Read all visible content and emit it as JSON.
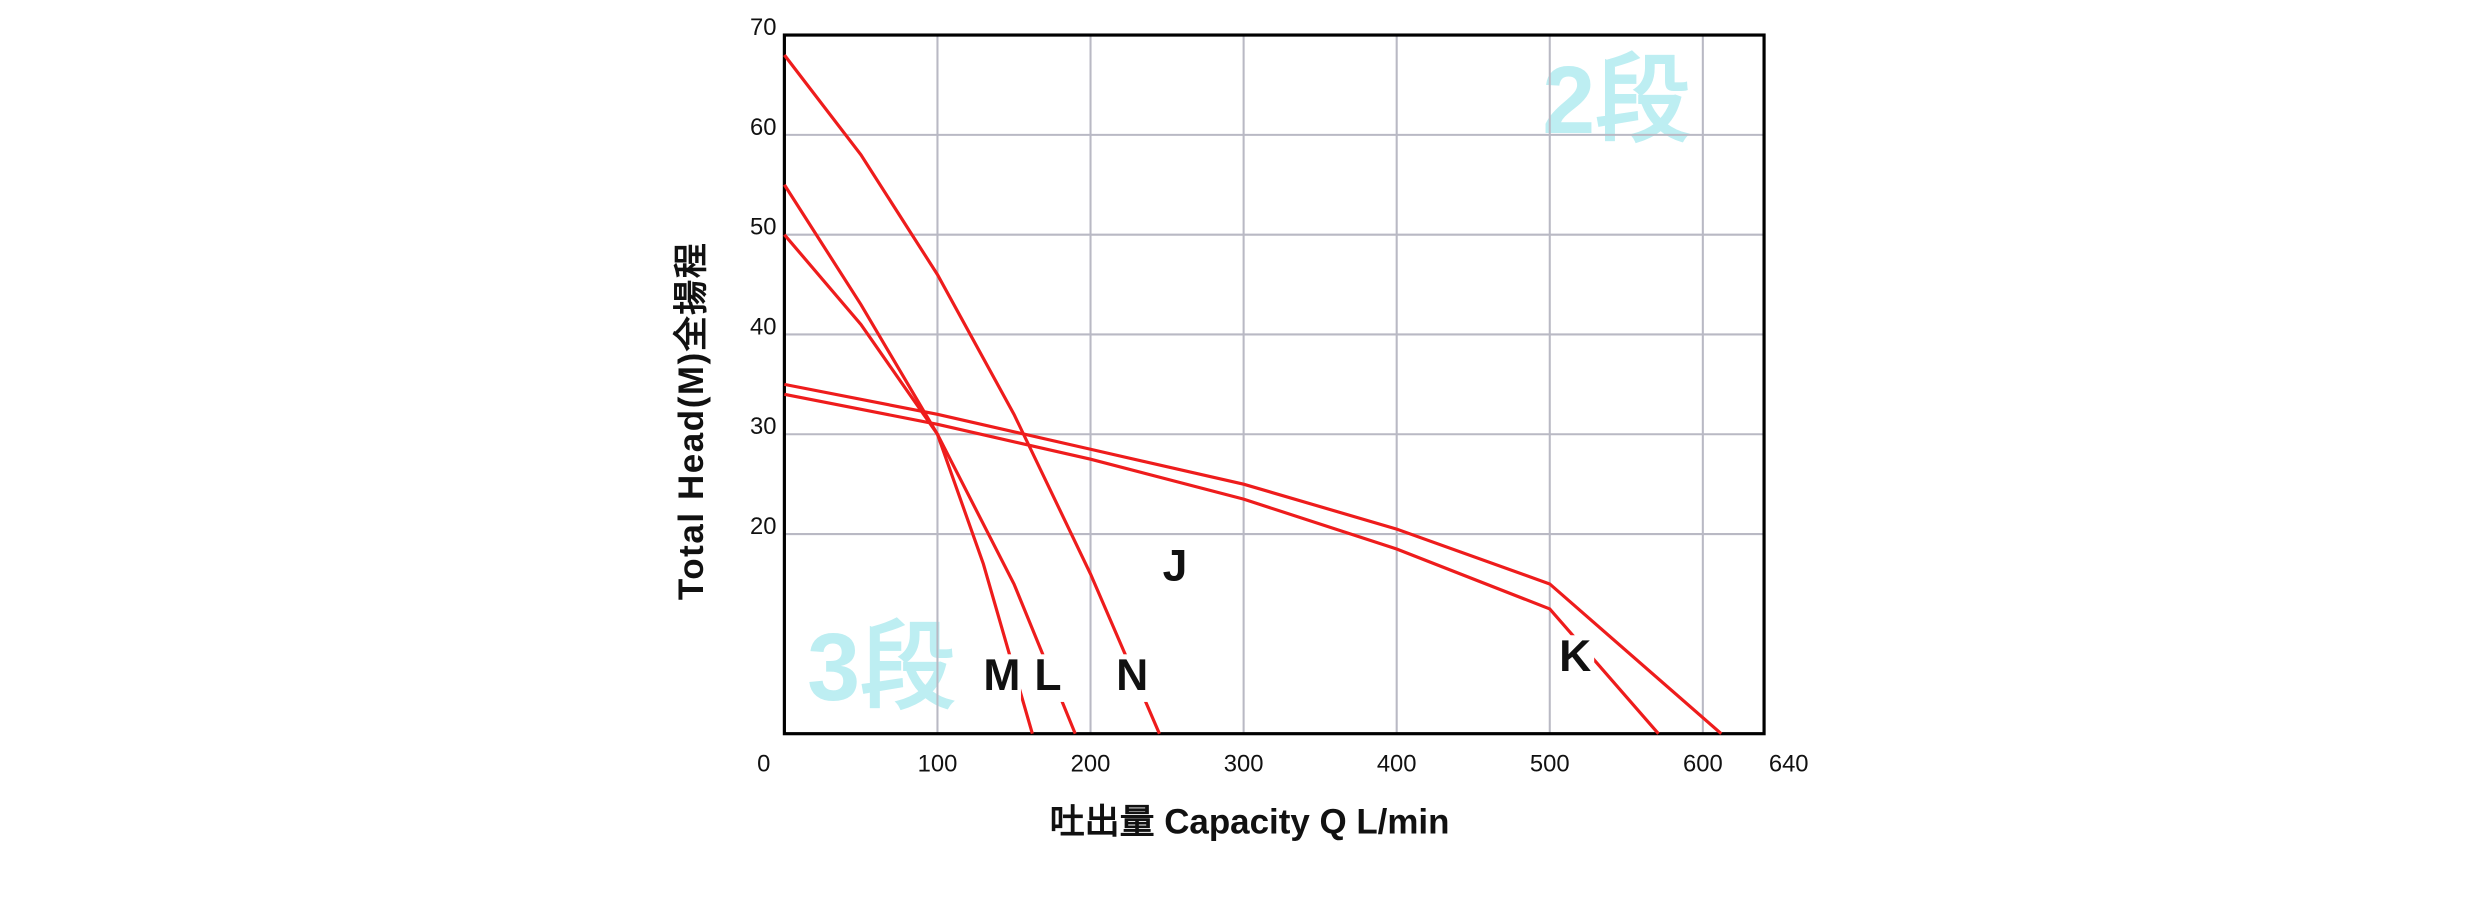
{
  "chart_data": {
    "type": "line",
    "xlabel": "吐出量 Capacity   Q L/min",
    "ylabel": "Total Head(M)全揚程",
    "annotations": [
      "2段",
      "3段"
    ],
    "xlim": [
      0,
      640
    ],
    "xticks": [
      0,
      100,
      200,
      300,
      400,
      500,
      600,
      640
    ],
    "ylim": [
      0,
      70
    ],
    "yticks": [
      20,
      30,
      40,
      50,
      60,
      70
    ],
    "grid": true,
    "series": [
      {
        "name": "M",
        "color": "#ee1c1c",
        "x": [
          0,
          50,
          100,
          130,
          162
        ],
        "values": [
          55,
          43,
          30,
          17,
          0
        ]
      },
      {
        "name": "L",
        "color": "#ee1c1c",
        "x": [
          0,
          50,
          100,
          150,
          190
        ],
        "values": [
          50,
          41,
          30,
          15,
          0
        ]
      },
      {
        "name": "N",
        "color": "#ee1c1c",
        "x": [
          0,
          50,
          100,
          150,
          200,
          245
        ],
        "values": [
          68,
          58,
          46,
          32,
          16,
          0
        ]
      },
      {
        "name": "J",
        "color": "#ee1c1c",
        "x": [
          0,
          100,
          200,
          300,
          400,
          500,
          612
        ],
        "values": [
          35,
          32,
          28.5,
          25,
          20.5,
          15,
          0
        ]
      },
      {
        "name": "K",
        "color": "#ee1c1c",
        "x": [
          0,
          100,
          200,
          300,
          400,
          500,
          571
        ],
        "values": [
          34,
          31,
          27.5,
          23.5,
          18.5,
          12.5,
          0
        ]
      }
    ]
  }
}
